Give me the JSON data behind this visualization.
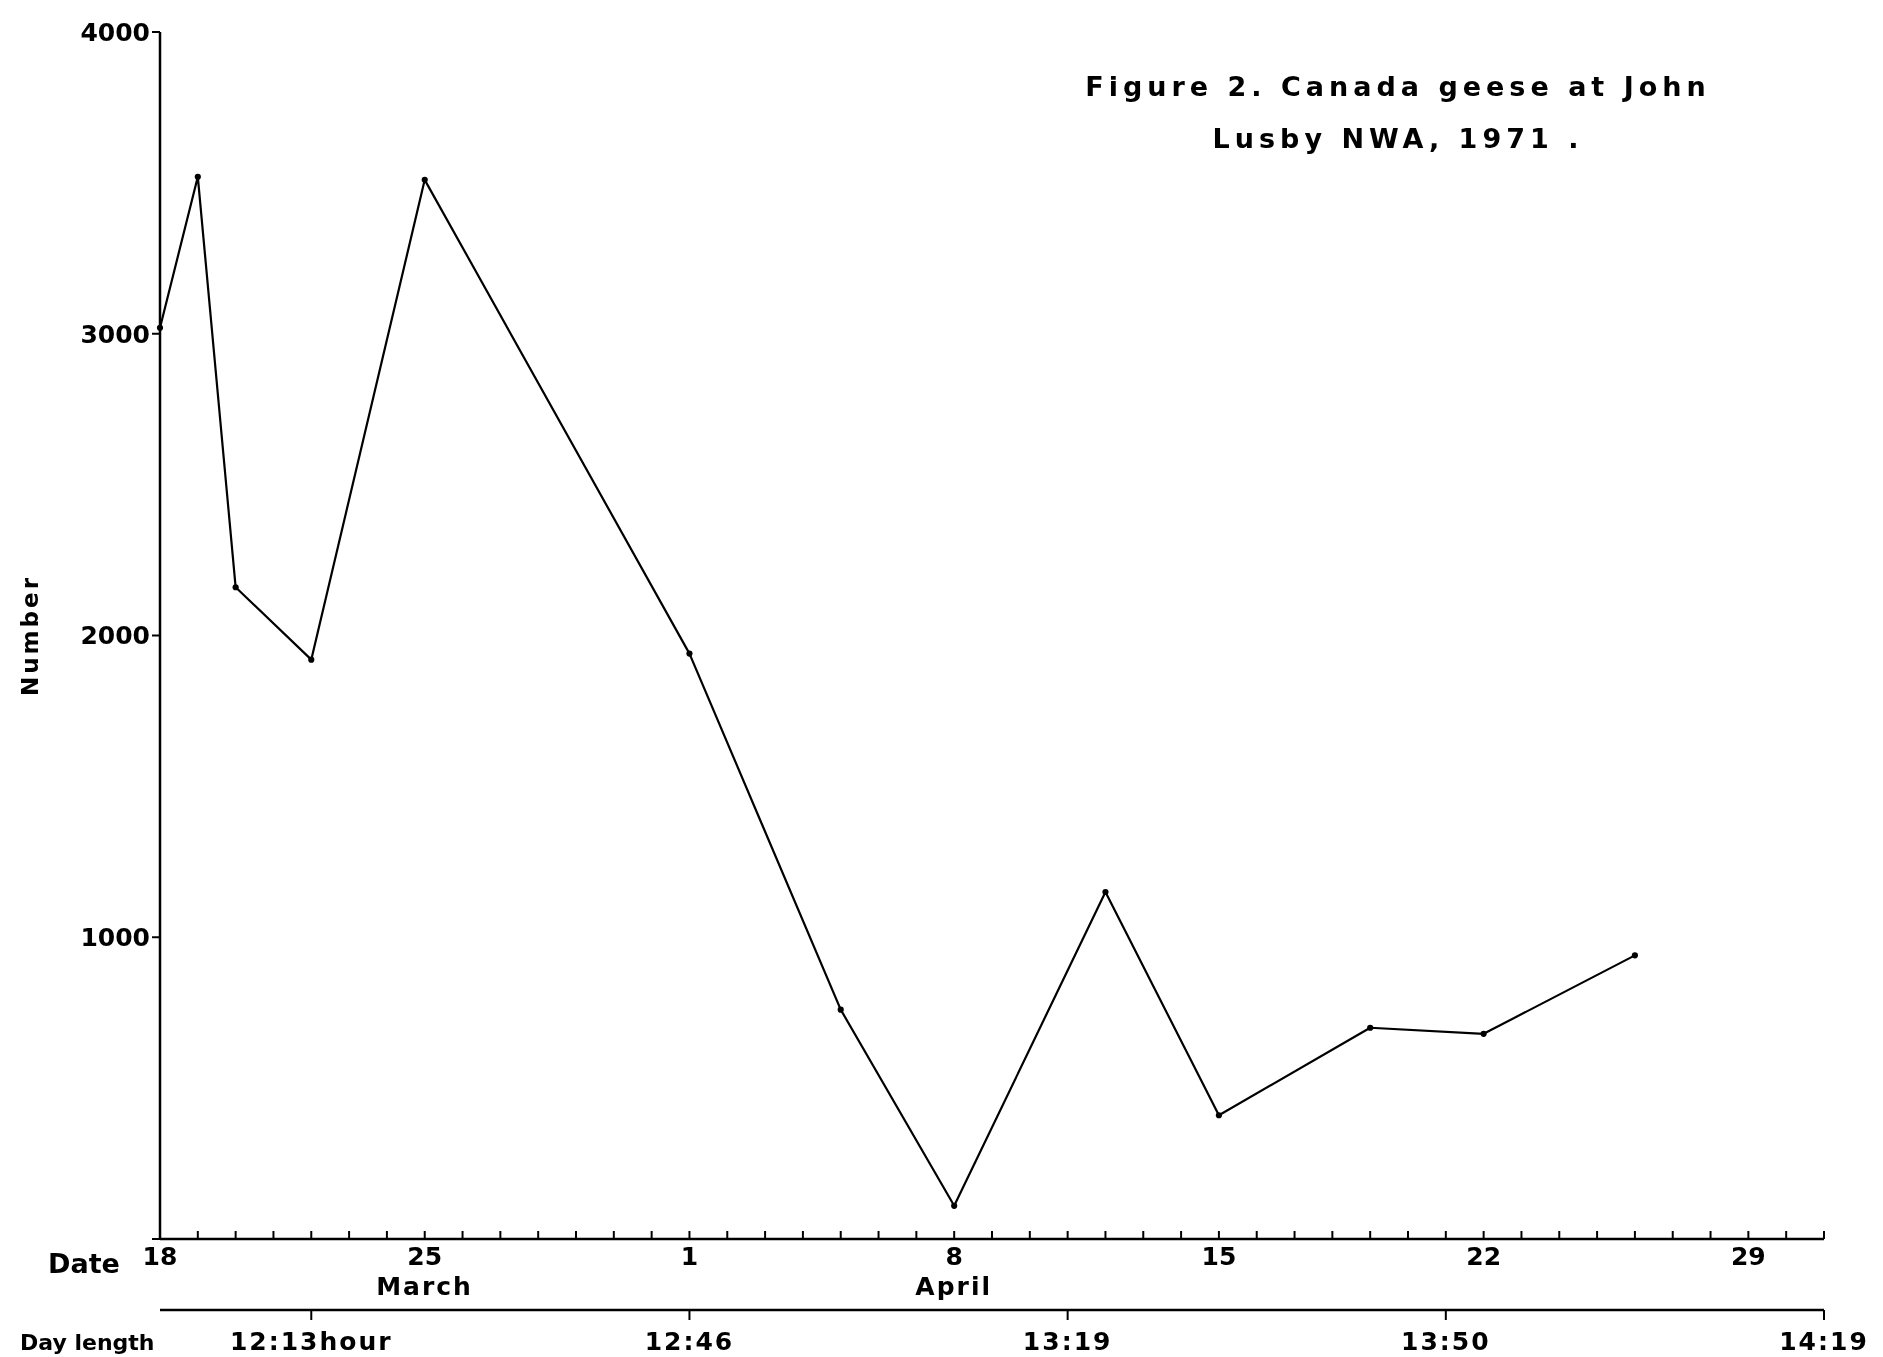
{
  "chart_data": {
    "type": "line",
    "title": "Figure 2. Canada geese at John Lusby NWA, 1971 .",
    "xlabel": "Date",
    "x2label": "Day length",
    "ylabel": "Number",
    "x": [
      "1971-03-18",
      "1971-03-19",
      "1971-03-20",
      "1971-03-22",
      "1971-03-25",
      "1971-04-01",
      "1971-04-05",
      "1971-04-08",
      "1971-04-12",
      "1971-04-15",
      "1971-04-19",
      "1971-04-22",
      "1971-04-26"
    ],
    "series": [
      {
        "color": "#000000",
        "values": [
          3020,
          3520,
          2160,
          1920,
          3510,
          1940,
          760,
          110,
          1150,
          410,
          700,
          680,
          940
        ]
      }
    ],
    "marker": "circle",
    "line_style": "solid",
    "grid": false,
    "xlim": [
      "1971-03-18",
      "1971-05-01"
    ],
    "xticks": [
      {
        "value": "1971-03-18",
        "label": "18"
      },
      {
        "value": "1971-03-19",
        "label": null
      },
      {
        "value": "1971-03-20",
        "label": null
      },
      {
        "value": "1971-03-21",
        "label": null
      },
      {
        "value": "1971-03-22",
        "label": null
      },
      {
        "value": "1971-03-23",
        "label": null
      },
      {
        "value": "1971-03-24",
        "label": null
      },
      {
        "value": "1971-03-25",
        "label": "25"
      },
      {
        "value": "1971-03-26",
        "label": null
      },
      {
        "value": "1971-03-27",
        "label": null
      },
      {
        "value": "1971-03-28",
        "label": null
      },
      {
        "value": "1971-03-29",
        "label": null
      },
      {
        "value": "1971-03-30",
        "label": null
      },
      {
        "value": "1971-03-31",
        "label": null
      },
      {
        "value": "1971-04-01",
        "label": "1"
      },
      {
        "value": "1971-04-02",
        "label": null
      },
      {
        "value": "1971-04-03",
        "label": null
      },
      {
        "value": "1971-04-04",
        "label": null
      },
      {
        "value": "1971-04-05",
        "label": null
      },
      {
        "value": "1971-04-06",
        "label": null
      },
      {
        "value": "1971-04-07",
        "label": null
      },
      {
        "value": "1971-04-08",
        "label": "8"
      },
      {
        "value": "1971-04-09",
        "label": null
      },
      {
        "value": "1971-04-10",
        "label": null
      },
      {
        "value": "1971-04-11",
        "label": null
      },
      {
        "value": "1971-04-12",
        "label": null
      },
      {
        "value": "1971-04-13",
        "label": null
      },
      {
        "value": "1971-04-14",
        "label": null
      },
      {
        "value": "1971-04-15",
        "label": "15"
      },
      {
        "value": "1971-04-16",
        "label": null
      },
      {
        "value": "1971-04-17",
        "label": null
      },
      {
        "value": "1971-04-18",
        "label": null
      },
      {
        "value": "1971-04-19",
        "label": null
      },
      {
        "value": "1971-04-20",
        "label": null
      },
      {
        "value": "1971-04-21",
        "label": null
      },
      {
        "value": "1971-04-22",
        "label": "22"
      },
      {
        "value": "1971-04-23",
        "label": null
      },
      {
        "value": "1971-04-24",
        "label": null
      },
      {
        "value": "1971-04-25",
        "label": null
      },
      {
        "value": "1971-04-26",
        "label": null
      },
      {
        "value": "1971-04-27",
        "label": null
      },
      {
        "value": "1971-04-28",
        "label": null
      },
      {
        "value": "1971-04-29",
        "label": "29"
      },
      {
        "value": "1971-04-30",
        "label": null
      },
      {
        "value": "1971-05-01",
        "label": null
      }
    ],
    "x2lim": [
      "1971-03-18",
      "1971-05-01"
    ],
    "x2ticks": [
      {
        "value": "1971-03-22",
        "label": "12:13hour"
      },
      {
        "value": "1971-04-01",
        "label": "12:46"
      },
      {
        "value": "1971-04-11",
        "label": "13:19"
      },
      {
        "value": "1971-04-21",
        "label": "13:50"
      },
      {
        "value": "1971-05-01",
        "label": "14:19"
      }
    ],
    "ylim": [
      0,
      4000
    ],
    "yticks": [
      {
        "value": 0,
        "label": null
      },
      1000,
      2000,
      3000,
      4000
    ],
    "annotations": [
      "March",
      "April"
    ]
  }
}
